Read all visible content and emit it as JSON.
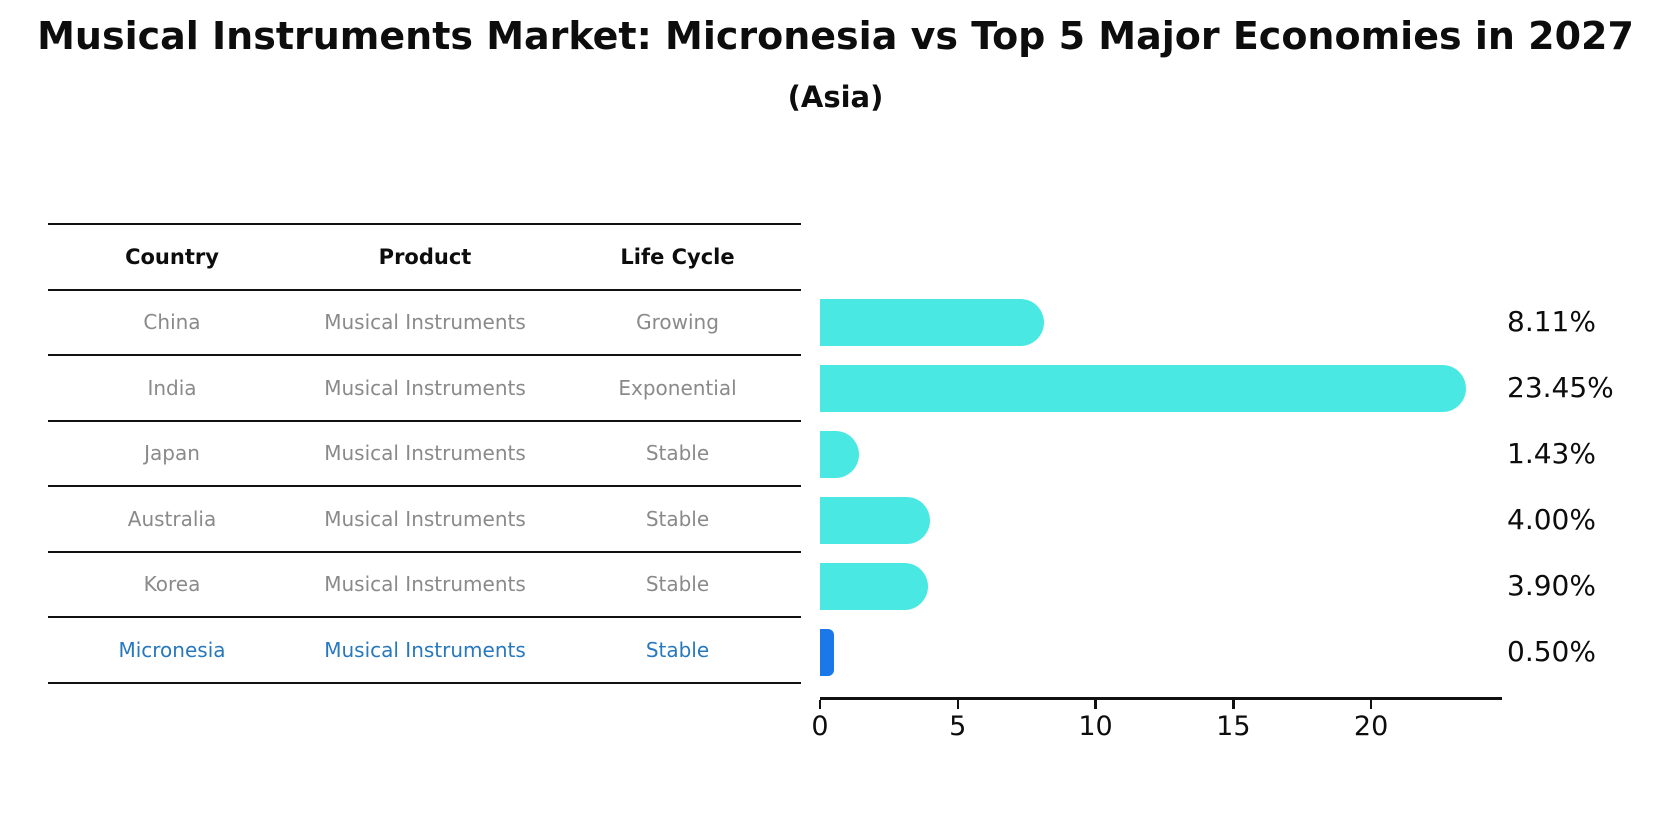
{
  "title": "Musical Instruments Market: Micronesia vs Top 5 Major Economies in 2027",
  "subtitle": "(Asia)",
  "table": {
    "columns": [
      "Country",
      "Product",
      "Life Cycle"
    ]
  },
  "rows": [
    {
      "country": "China",
      "product": "Musical Instruments",
      "life_cycle": "Growing",
      "value": 8.11,
      "value_label": "8.11%",
      "highlight": false
    },
    {
      "country": "India",
      "product": "Musical Instruments",
      "life_cycle": "Exponential",
      "value": 23.45,
      "value_label": "23.45%",
      "highlight": false
    },
    {
      "country": "Japan",
      "product": "Musical Instruments",
      "life_cycle": "Stable",
      "value": 1.43,
      "value_label": "1.43%",
      "highlight": false
    },
    {
      "country": "Australia",
      "product": "Musical Instruments",
      "life_cycle": "Stable",
      "value": 4.0,
      "value_label": "4.00%",
      "highlight": false
    },
    {
      "country": "Korea",
      "product": "Musical Instruments",
      "life_cycle": "Stable",
      "value": 3.9,
      "value_label": "3.90%",
      "highlight": false
    },
    {
      "country": "Micronesia",
      "product": "Musical Instruments",
      "life_cycle": "Stable",
      "value": 0.5,
      "value_label": "0.50%",
      "highlight": true
    }
  ],
  "chart_data": {
    "type": "bar",
    "orientation": "horizontal",
    "title": "Musical Instruments Market: Micronesia vs Top 5 Major Economies in 2027",
    "subtitle": "(Asia)",
    "categories": [
      "China",
      "India",
      "Japan",
      "Australia",
      "Korea",
      "Micronesia"
    ],
    "values": [
      8.11,
      23.45,
      1.43,
      4.0,
      3.9,
      0.5
    ],
    "value_labels": [
      "8.11%",
      "23.45%",
      "1.43%",
      "4.00%",
      "3.90%",
      "0.50%"
    ],
    "xlabel": "",
    "ylabel": "",
    "xlim": [
      0,
      24.75
    ],
    "xticks": [
      0,
      5,
      10,
      15,
      20
    ],
    "grid": "off",
    "legend": "none",
    "bar_color": "#4AE8E2",
    "highlight_color": "#1A78E8",
    "highlight_index": 5,
    "highlight_text_color": "#2878BE"
  }
}
